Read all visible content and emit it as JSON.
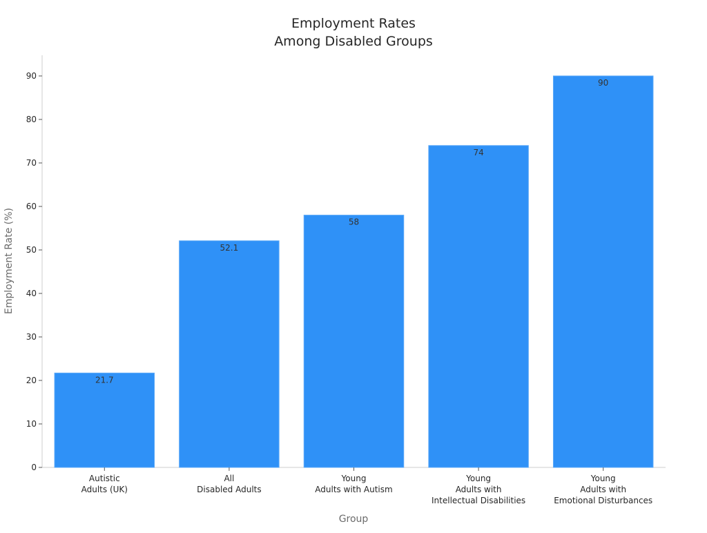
{
  "chart_data": {
    "type": "bar",
    "title": [
      "Employment Rates",
      "Among Disabled Groups"
    ],
    "xlabel": "Group",
    "ylabel": "Employment Rate (%)",
    "categories": [
      [
        "Autistic",
        "Adults (UK)"
      ],
      [
        "All",
        "Disabled Adults"
      ],
      [
        "Young",
        "Adults with Autism"
      ],
      [
        "Young",
        "Adults with",
        "Intellectual Disabilities"
      ],
      [
        "Young",
        "Adults with",
        "Emotional Disturbances"
      ]
    ],
    "values": [
      21.7,
      52.1,
      58,
      74,
      90
    ],
    "data_labels": [
      "21.7",
      "52.1",
      "58",
      "74",
      "90"
    ],
    "ylim": [
      0,
      95
    ],
    "yticks": [
      0,
      10,
      20,
      30,
      40,
      50,
      60,
      70,
      80,
      90
    ],
    "grid": false,
    "colors": {
      "bar": "#2f91f7",
      "bar_edge": "#5aa8f8",
      "axis": "#cccccc",
      "text": "#262626"
    }
  }
}
